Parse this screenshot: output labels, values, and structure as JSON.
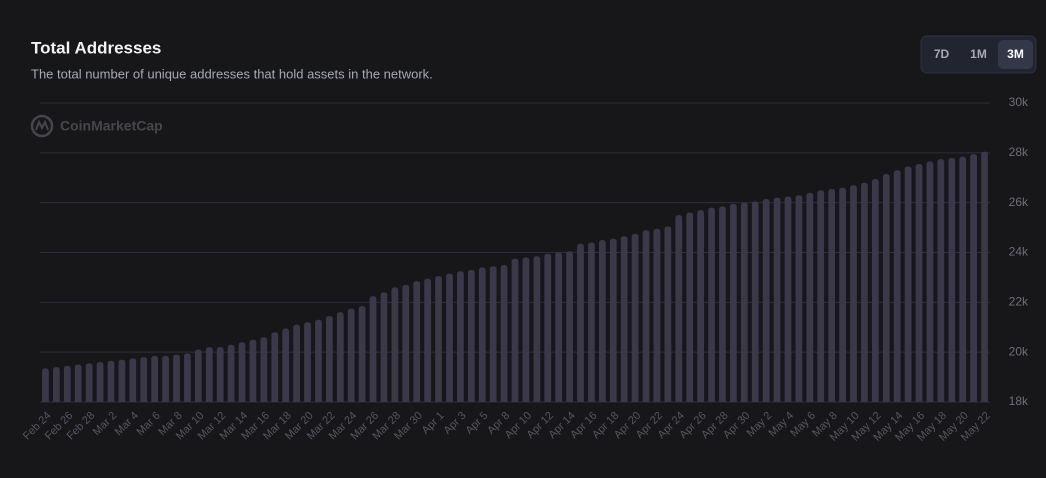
{
  "chart_data": {
    "type": "bar",
    "title": "Total Addresses",
    "subtitle": "The total number of unique addresses that hold assets in the network.",
    "watermark": "CoinMarketCap",
    "categories": [
      "Feb 24",
      null,
      "Feb 26",
      null,
      "Feb 28",
      null,
      "Mar 2",
      null,
      "Mar 4",
      null,
      "Mar 6",
      null,
      "Mar 8",
      null,
      "Mar 10",
      null,
      "Mar 12",
      null,
      "Mar 14",
      null,
      "Mar 16",
      null,
      "Mar 18",
      null,
      "Mar 20",
      null,
      "Mar 22",
      null,
      "Mar 24",
      null,
      "Mar 26",
      null,
      "Mar 28",
      null,
      "Mar 30",
      null,
      "Apr 1",
      null,
      "Apr 3",
      null,
      "Apr 5",
      null,
      "Apr 8",
      null,
      "Apr 10",
      null,
      "Apr 12",
      null,
      "Apr 14",
      null,
      "Apr 16",
      null,
      "Apr 18",
      null,
      "Apr 20",
      null,
      "Apr 22",
      null,
      "Apr 24",
      null,
      "Apr 26",
      null,
      "Apr 28",
      null,
      "Apr 30",
      null,
      "May 2",
      null,
      "May 4",
      null,
      "May 6",
      null,
      "May 8",
      null,
      "May 10",
      null,
      "May 12",
      null,
      "May 14",
      null,
      "May 16",
      null,
      "May 18",
      null,
      "May 20",
      null,
      "May 22"
    ],
    "values": [
      19350,
      19400,
      19450,
      19500,
      19550,
      19600,
      19650,
      19700,
      19750,
      19800,
      19850,
      19850,
      19900,
      19950,
      20100,
      20200,
      20200,
      20300,
      20400,
      20500,
      20600,
      20800,
      20950,
      21100,
      21200,
      21300,
      21450,
      21600,
      21750,
      21850,
      22250,
      22400,
      22600,
      22700,
      22850,
      22950,
      23050,
      23150,
      23250,
      23300,
      23400,
      23450,
      23500,
      23750,
      23800,
      23850,
      23950,
      24000,
      24050,
      24350,
      24400,
      24500,
      24550,
      24650,
      24750,
      24900,
      24950,
      25050,
      25500,
      25600,
      25700,
      25800,
      25850,
      25950,
      26000,
      26050,
      26150,
      26200,
      26250,
      26300,
      26400,
      26500,
      26550,
      26600,
      26700,
      26800,
      26950,
      27150,
      27300,
      27450,
      27550,
      27650,
      27750,
      27800,
      27850,
      27950,
      28050
    ],
    "color": "#3a3849",
    "ylim": [
      18000,
      30000
    ],
    "yticks": [
      {
        "value": 18000,
        "label": "18k"
      },
      {
        "value": 20000,
        "label": "20k"
      },
      {
        "value": 22000,
        "label": "22k"
      },
      {
        "value": 24000,
        "label": "24k"
      },
      {
        "value": 26000,
        "label": "26k"
      },
      {
        "value": 28000,
        "label": "28k"
      },
      {
        "value": 30000,
        "label": "30k"
      }
    ],
    "grid": true
  },
  "controls": {
    "buttons": [
      "7D",
      "1M",
      "3M"
    ],
    "active": 2
  }
}
